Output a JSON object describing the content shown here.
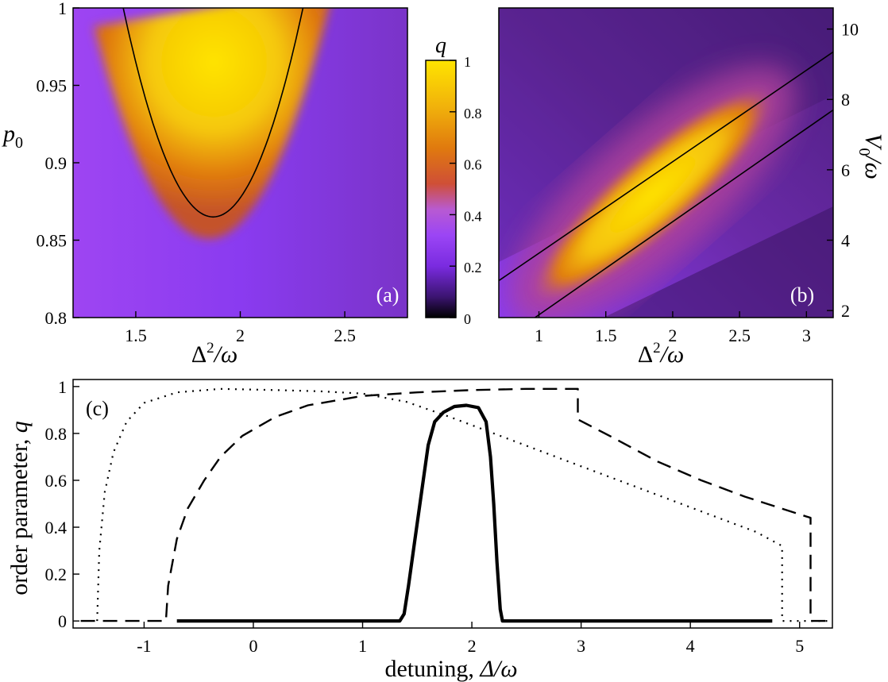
{
  "chart_data": [
    {
      "type": "heatmap",
      "panel_label": "(a)",
      "xlabel_base": "Δ",
      "xlabel_sup": "2",
      "xlabel_rest": "/ω",
      "ylabel_main": "p",
      "ylabel_sub": "0",
      "xlim": [
        1.2,
        2.8
      ],
      "ylim": [
        0.8,
        1.0
      ],
      "xticks": [
        1.5,
        2.0,
        2.5
      ],
      "xtick_labels": [
        "1.5",
        "2",
        "2.5"
      ],
      "yticks": [
        0.8,
        0.85,
        0.9,
        0.95,
        1.0
      ],
      "ytick_labels": [
        "0.8",
        "0.85",
        "0.9",
        "0.95",
        "1"
      ],
      "boundary_curve": {
        "vertex_x": 1.87,
        "vertex_y": 0.865,
        "left_top_x": 1.44,
        "right_top_x": 2.3,
        "top_y": 1.0
      },
      "high_q_region": "q ≈ 1 inside parabola (yellow), ≈ 0.5 orange rim, ≈ 0.2 purple background"
    },
    {
      "type": "heatmap",
      "panel_label": "(b)",
      "xlabel_base": "Δ",
      "xlabel_sup": "2",
      "xlabel_rest": "/ω",
      "ylabel_main": "V",
      "ylabel_sub": "0",
      "ylabel_rest": "/ω",
      "xlim": [
        0.7,
        3.2
      ],
      "ylim": [
        1.8,
        10.6
      ],
      "xticks": [
        1,
        1.5,
        2,
        2.5,
        3
      ],
      "xtick_labels": [
        "1",
        "1.5",
        "2",
        "2.5",
        "3"
      ],
      "yticks": [
        2,
        4,
        6,
        8,
        10
      ],
      "ytick_labels": [
        "2",
        "4",
        "6",
        "8",
        "10"
      ],
      "boundary_lines": [
        {
          "points": [
            [
              0.7,
              2.85
            ],
            [
              3.2,
              9.35
            ]
          ]
        },
        {
          "points": [
            [
              0.97,
              1.8
            ],
            [
              3.2,
              7.7
            ]
          ]
        }
      ],
      "high_q_band": {
        "from": [
          1.1,
          2.8
        ],
        "to": [
          2.6,
          7.8
        ]
      }
    },
    {
      "type": "line",
      "colorbar_label": "q",
      "colorbar_ticks": [
        0,
        0.2,
        0.4,
        0.6,
        0.8,
        1
      ],
      "colorbar_tick_labels": [
        "0",
        "0.2",
        "0.4",
        "0.6",
        "0.8",
        "1"
      ],
      "colormap_stops": [
        "#000000",
        "#3b1470",
        "#7a2be0",
        "#9b45f5",
        "#b85ad2",
        "#cf4f37",
        "#e07a0e",
        "#f1b20b",
        "#ffe400"
      ]
    },
    {
      "type": "line",
      "panel_label": "(c)",
      "xlabel": "detuning, ",
      "xlabel_math": "Δ/ω",
      "ylabel": "order parameter, ",
      "ylabel_math": "q",
      "xlim": [
        -1.65,
        5.3
      ],
      "ylim": [
        -0.03,
        1.03
      ],
      "xticks": [
        -1,
        0,
        1,
        2,
        3,
        4,
        5
      ],
      "xtick_labels": [
        "-1",
        "0",
        "1",
        "2",
        "3",
        "4",
        "5"
      ],
      "yticks": [
        0,
        0.2,
        0.4,
        0.6,
        0.8,
        1
      ],
      "ytick_labels": [
        "0",
        "0.2",
        "0.4",
        "0.6",
        "0.8",
        "1"
      ],
      "series": [
        {
          "name": "solid",
          "style": "solid",
          "points": [
            [
              -0.7,
              0.0
            ],
            [
              1.34,
              0.0
            ],
            [
              1.38,
              0.03
            ],
            [
              1.42,
              0.15
            ],
            [
              1.48,
              0.35
            ],
            [
              1.54,
              0.55
            ],
            [
              1.6,
              0.75
            ],
            [
              1.66,
              0.85
            ],
            [
              1.74,
              0.89
            ],
            [
              1.84,
              0.915
            ],
            [
              1.95,
              0.92
            ],
            [
              2.06,
              0.91
            ],
            [
              2.13,
              0.85
            ],
            [
              2.17,
              0.7
            ],
            [
              2.2,
              0.5
            ],
            [
              2.23,
              0.25
            ],
            [
              2.26,
              0.05
            ],
            [
              2.28,
              0.0
            ],
            [
              4.75,
              0.0
            ]
          ]
        },
        {
          "name": "dashed",
          "style": "dashed",
          "points": [
            [
              -1.58,
              0.0
            ],
            [
              -0.8,
              0.0
            ],
            [
              -0.78,
              0.15
            ],
            [
              -0.7,
              0.35
            ],
            [
              -0.6,
              0.48
            ],
            [
              -0.45,
              0.6
            ],
            [
              -0.3,
              0.7
            ],
            [
              -0.1,
              0.79
            ],
            [
              0.2,
              0.87
            ],
            [
              0.5,
              0.92
            ],
            [
              1.0,
              0.96
            ],
            [
              1.5,
              0.975
            ],
            [
              2.0,
              0.985
            ],
            [
              2.5,
              0.99
            ],
            [
              2.97,
              0.99
            ],
            [
              2.97,
              0.86
            ],
            [
              3.3,
              0.78
            ],
            [
              3.7,
              0.68
            ],
            [
              4.1,
              0.6
            ],
            [
              4.5,
              0.53
            ],
            [
              4.9,
              0.47
            ],
            [
              5.1,
              0.44
            ],
            [
              5.1,
              0.0
            ],
            [
              5.3,
              0.0
            ]
          ]
        },
        {
          "name": "dotted",
          "style": "dotted",
          "points": [
            [
              -1.43,
              0.0
            ],
            [
              -1.41,
              0.3
            ],
            [
              -1.36,
              0.55
            ],
            [
              -1.28,
              0.72
            ],
            [
              -1.16,
              0.85
            ],
            [
              -1.0,
              0.93
            ],
            [
              -0.7,
              0.975
            ],
            [
              -0.3,
              0.99
            ],
            [
              0.2,
              0.985
            ],
            [
              0.6,
              0.98
            ],
            [
              1.0,
              0.97
            ],
            [
              1.4,
              0.935
            ],
            [
              1.8,
              0.87
            ],
            [
              2.2,
              0.8
            ],
            [
              2.6,
              0.73
            ],
            [
              3.0,
              0.66
            ],
            [
              3.4,
              0.59
            ],
            [
              3.8,
              0.52
            ],
            [
              4.2,
              0.45
            ],
            [
              4.6,
              0.38
            ],
            [
              4.84,
              0.32
            ],
            [
              4.84,
              0.0
            ],
            [
              5.3,
              0.0
            ]
          ]
        }
      ]
    }
  ]
}
